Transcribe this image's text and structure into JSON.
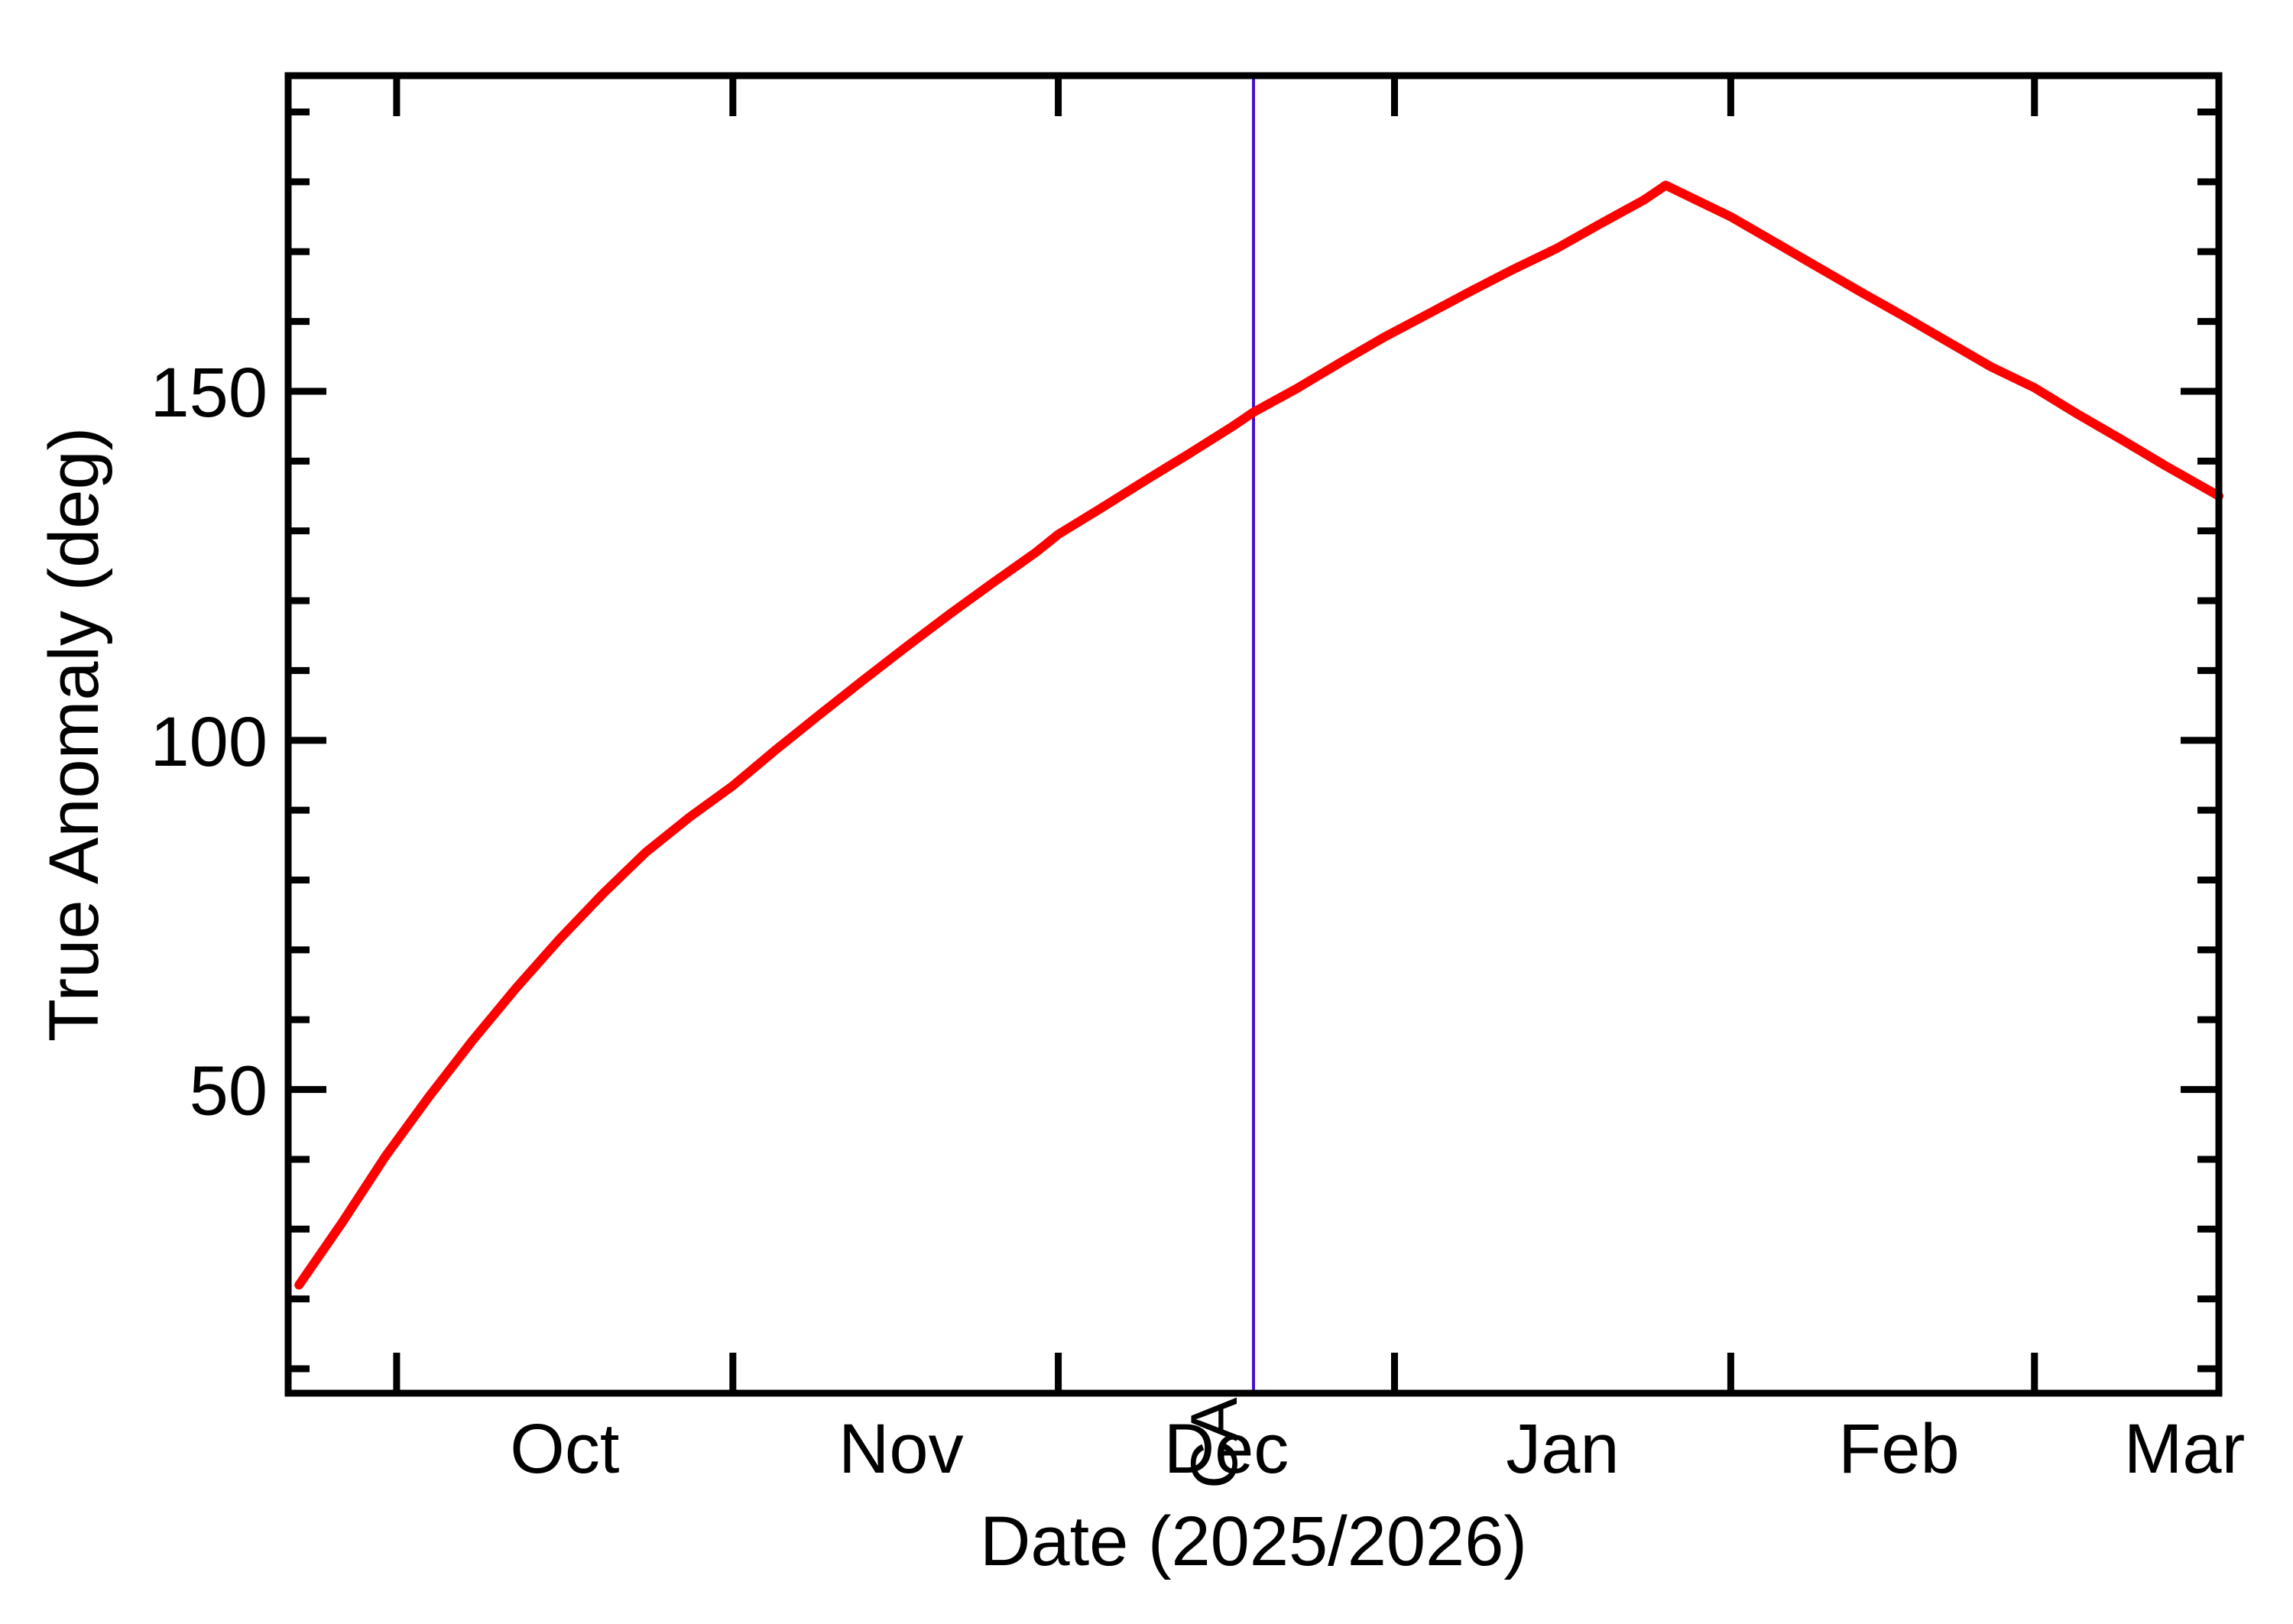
{
  "chart_data": {
    "type": "line",
    "title": "",
    "xlabel": "Date (2025/2026)",
    "ylabel": "True Anomaly (deg)",
    "x_range": [
      "2025-09-21",
      "2026-03-18"
    ],
    "y_range": [
      6.5,
      195.2
    ],
    "grid": "off",
    "legend": "none",
    "x_ticks": [
      {
        "label": "Oct",
        "date": "2025-10-01"
      },
      {
        "label": "Nov",
        "date": "2025-11-01"
      },
      {
        "label": "Dec",
        "date": "2025-12-01"
      },
      {
        "label": "Jan",
        "date": "2026-01-01"
      },
      {
        "label": "Feb",
        "date": "2026-02-01"
      },
      {
        "label": "Mar",
        "date": "2026-03-01"
      }
    ],
    "y_major_ticks": [
      50,
      100,
      150
    ],
    "y_minor_tick_step": 10,
    "series": [
      {
        "name": "true-anomaly",
        "color": "#ff0000",
        "points": [
          [
            "2025-09-22",
            22.0
          ],
          [
            "2025-09-26",
            31.0
          ],
          [
            "2025-09-30",
            40.5
          ],
          [
            "2025-10-04",
            49.0
          ],
          [
            "2025-10-08",
            57.0
          ],
          [
            "2025-10-12",
            64.5
          ],
          [
            "2025-10-16",
            71.5
          ],
          [
            "2025-10-20",
            78.0
          ],
          [
            "2025-10-24",
            84.0
          ],
          [
            "2025-10-28",
            89.0
          ],
          [
            "2025-11-01",
            93.5
          ],
          [
            "2025-11-05",
            98.7
          ],
          [
            "2025-11-09",
            103.7
          ],
          [
            "2025-11-13",
            108.6
          ],
          [
            "2025-11-17",
            113.4
          ],
          [
            "2025-11-21",
            118.1
          ],
          [
            "2025-11-25",
            122.6
          ],
          [
            "2025-11-29",
            127.0
          ],
          [
            "2025-12-01",
            129.5
          ],
          [
            "2025-12-05",
            133.3
          ],
          [
            "2025-12-09",
            137.2
          ],
          [
            "2025-12-13",
            141.0
          ],
          [
            "2025-12-17",
            144.9
          ],
          [
            "2025-12-19",
            147.0
          ],
          [
            "2025-12-23",
            150.4
          ],
          [
            "2025-12-27",
            154.1
          ],
          [
            "2025-12-31",
            157.7
          ],
          [
            "2026-01-04",
            161.0
          ],
          [
            "2026-01-08",
            164.3
          ],
          [
            "2026-01-12",
            167.5
          ],
          [
            "2026-01-16",
            170.5
          ],
          [
            "2026-01-20",
            174.0
          ],
          [
            "2026-01-24",
            177.4
          ],
          [
            "2026-01-26",
            179.5
          ],
          [
            "2026-02-01",
            175.0
          ],
          [
            "2026-02-05",
            171.4
          ],
          [
            "2026-02-09",
            167.8
          ],
          [
            "2026-02-13",
            164.2
          ],
          [
            "2026-02-17",
            160.7
          ],
          [
            "2026-02-21",
            157.1
          ],
          [
            "2026-02-25",
            153.5
          ],
          [
            "2026-03-01",
            150.5
          ],
          [
            "2026-03-05",
            146.7
          ],
          [
            "2026-03-09",
            143.1
          ],
          [
            "2026-03-13",
            139.4
          ],
          [
            "2026-03-18",
            135.0
          ]
        ]
      }
    ],
    "annotations": [
      {
        "label": "CA",
        "date": "2025-12-19",
        "color": "#4810d0"
      }
    ]
  },
  "colors": {
    "frame": "#000000",
    "background": "#ffffff",
    "curve": "#ff0000",
    "ca": "#4810d0"
  }
}
